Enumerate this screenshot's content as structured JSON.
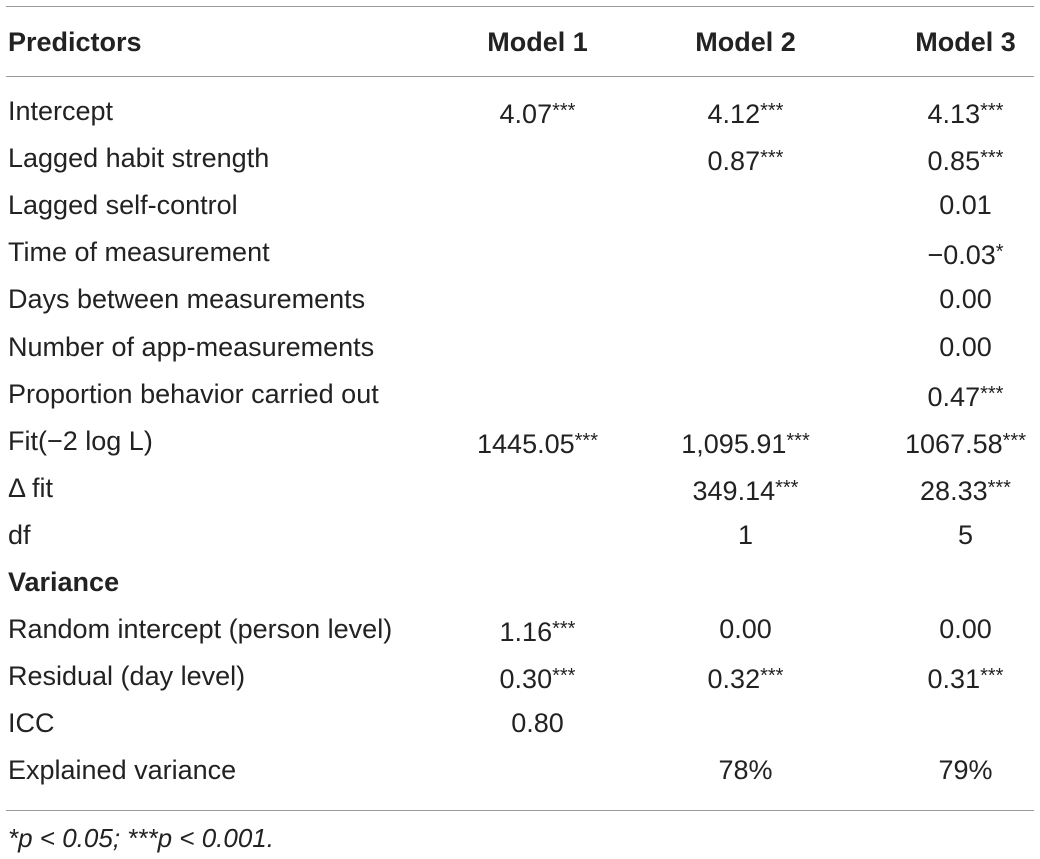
{
  "table": {
    "headers": [
      "Predictors",
      "Model 1",
      "Model 2",
      "Model 3"
    ],
    "rows": [
      {
        "label": "Intercept",
        "m1": "4.07***",
        "m2": "4.12***",
        "m3": "4.13***"
      },
      {
        "label": "Lagged habit strength",
        "m1": "",
        "m2": "0.87***",
        "m3": "0.85***"
      },
      {
        "label": "Lagged self-control",
        "m1": "",
        "m2": "",
        "m3": "0.01"
      },
      {
        "label": "Time of measurement",
        "m1": "",
        "m2": "",
        "m3": "−0.03*"
      },
      {
        "label": "Days between measurements",
        "m1": "",
        "m2": "",
        "m3": "0.00"
      },
      {
        "label": "Number of app-measurements",
        "m1": "",
        "m2": "",
        "m3": "0.00"
      },
      {
        "label": "Proportion behavior carried out",
        "m1": "",
        "m2": "",
        "m3": "0.47***"
      },
      {
        "label": "Fit(−2 log L)",
        "m1": "1445.05***",
        "m2": "1,095.91***",
        "m3": "1067.58***"
      },
      {
        "label": "Δ fit",
        "m1": "",
        "m2": "349.14***",
        "m3": "28.33***"
      },
      {
        "label": "df",
        "m1": "",
        "m2": "1",
        "m3": "5"
      },
      {
        "label": "Variance",
        "m1": "",
        "m2": "",
        "m3": "",
        "section": true
      },
      {
        "label": "Random intercept (person level)",
        "m1": "1.16***",
        "m2": "0.00",
        "m3": "0.00"
      },
      {
        "label": "Residual (day level)",
        "m1": "0.30***",
        "m2": "0.32***",
        "m3": "0.31***"
      },
      {
        "label": "ICC",
        "m1": "0.80",
        "m2": "",
        "m3": ""
      },
      {
        "label": "Explained variance",
        "m1": "",
        "m2": "78%",
        "m3": "79%"
      }
    ],
    "footnote": "*p < 0.05; ***p < 0.001."
  }
}
